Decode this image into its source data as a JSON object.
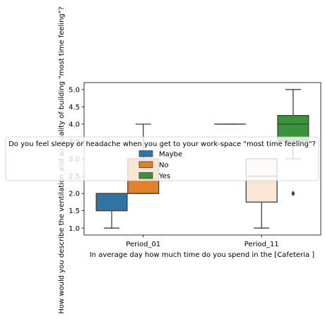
{
  "chart_data": {
    "type": "box",
    "xlabel": "In average day how much time do you spend in the [Cafeteria ]",
    "ylabel": "How would you describe the ventilation and air quality of building  \"most time feeling\"?",
    "ylim": [
      0.8,
      5.2
    ],
    "yticks": [
      "1.0",
      "1.5",
      "2.0",
      "2.5",
      "3.0",
      "3.5",
      "4.0",
      "4.5",
      "5.0"
    ],
    "categories": [
      "Period_01",
      "Period_11"
    ],
    "legend": {
      "title": "Do you feel sleepy or headache when you get to your work-space \"most time feeling\"?",
      "position": "center"
    },
    "series": [
      {
        "name": "Maybe",
        "color": "#3274a1",
        "boxes": [
          {
            "category": "Period_01",
            "whisker_low": 1.0,
            "q1": 1.5,
            "median": 2.0,
            "q3": 2.0,
            "whisker_high": 2.0,
            "outliers": []
          },
          {
            "category": "Period_11",
            "whisker_low": 4.0,
            "q1": 4.0,
            "median": 4.0,
            "q3": 4.0,
            "whisker_high": 4.0,
            "outliers": []
          }
        ]
      },
      {
        "name": "No",
        "color": "#e1812c",
        "boxes": [
          {
            "category": "Period_01",
            "whisker_low": 2.0,
            "q1": 2.0,
            "median": 2.0,
            "q3": 3.0,
            "whisker_high": 4.0,
            "outliers": []
          },
          {
            "category": "Period_11",
            "whisker_low": 1.0,
            "q1": 1.75,
            "median": 2.5,
            "q3": 3.0,
            "whisker_high": 3.0,
            "outliers": []
          }
        ]
      },
      {
        "name": "Yes",
        "color": "#3a923a",
        "boxes": [
          {
            "category": "Period_11",
            "whisker_low": 3.0,
            "q1": 3.5,
            "median": 4.0,
            "q3": 4.25,
            "whisker_high": 5.0,
            "outliers": [
              2.0
            ]
          }
        ]
      }
    ]
  }
}
